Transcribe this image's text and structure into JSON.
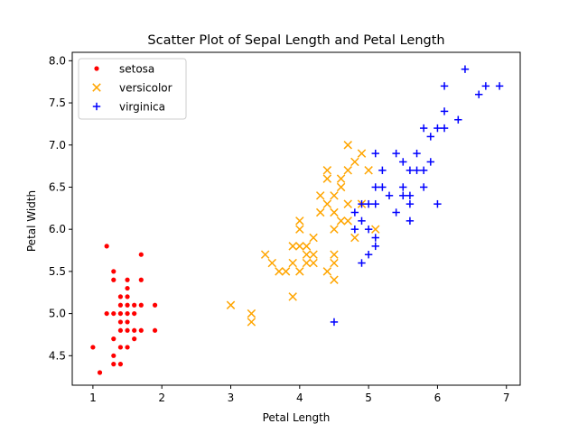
{
  "chart_data": {
    "type": "scatter",
    "title": "Scatter Plot of Sepal Length and Petal Length",
    "xlabel": "Petal Length",
    "ylabel": "Petal Width",
    "xlim": [
      0.7,
      7.2
    ],
    "ylim": [
      4.15,
      8.1
    ],
    "xticks": [
      1,
      2,
      3,
      4,
      5,
      6,
      7
    ],
    "yticks": [
      4.5,
      5.0,
      5.5,
      6.0,
      6.5,
      7.0,
      7.5,
      8.0
    ],
    "xtick_labels": [
      "1",
      "2",
      "3",
      "4",
      "5",
      "6",
      "7"
    ],
    "ytick_labels": [
      "4.5",
      "5.0",
      "5.5",
      "6.0",
      "6.5",
      "7.0",
      "7.5",
      "8.0"
    ],
    "grid": false,
    "legend_position": "top-left",
    "series": [
      {
        "name": "setosa",
        "marker": "dot",
        "color": "#ff0000",
        "points": [
          [
            1.0,
            4.6
          ],
          [
            1.1,
            4.3
          ],
          [
            1.2,
            5.8
          ],
          [
            1.2,
            5.0
          ],
          [
            1.3,
            5.5
          ],
          [
            1.3,
            5.4
          ],
          [
            1.3,
            5.0
          ],
          [
            1.3,
            4.7
          ],
          [
            1.3,
            4.5
          ],
          [
            1.3,
            4.4
          ],
          [
            1.4,
            5.2
          ],
          [
            1.4,
            5.1
          ],
          [
            1.4,
            5.0
          ],
          [
            1.4,
            4.9
          ],
          [
            1.4,
            4.8
          ],
          [
            1.4,
            4.6
          ],
          [
            1.4,
            4.4
          ],
          [
            1.5,
            5.4
          ],
          [
            1.5,
            5.3
          ],
          [
            1.5,
            5.2
          ],
          [
            1.5,
            5.1
          ],
          [
            1.5,
            5.0
          ],
          [
            1.5,
            4.9
          ],
          [
            1.5,
            4.8
          ],
          [
            1.5,
            4.6
          ],
          [
            1.6,
            5.1
          ],
          [
            1.6,
            5.0
          ],
          [
            1.6,
            4.8
          ],
          [
            1.6,
            4.7
          ],
          [
            1.7,
            5.7
          ],
          [
            1.7,
            5.4
          ],
          [
            1.7,
            5.1
          ],
          [
            1.7,
            4.8
          ],
          [
            1.9,
            5.1
          ],
          [
            1.9,
            4.8
          ]
        ]
      },
      {
        "name": "versicolor",
        "marker": "x",
        "color": "#ffa500",
        "points": [
          [
            3.0,
            5.1
          ],
          [
            3.3,
            5.0
          ],
          [
            3.3,
            4.9
          ],
          [
            3.5,
            5.7
          ],
          [
            3.6,
            5.6
          ],
          [
            3.7,
            5.5
          ],
          [
            3.8,
            5.5
          ],
          [
            3.9,
            5.8
          ],
          [
            3.9,
            5.6
          ],
          [
            3.9,
            5.2
          ],
          [
            4.0,
            6.1
          ],
          [
            4.0,
            6.0
          ],
          [
            4.0,
            5.8
          ],
          [
            4.0,
            5.5
          ],
          [
            4.1,
            5.8
          ],
          [
            4.1,
            5.7
          ],
          [
            4.1,
            5.6
          ],
          [
            4.2,
            5.9
          ],
          [
            4.2,
            5.7
          ],
          [
            4.2,
            5.6
          ],
          [
            4.3,
            6.4
          ],
          [
            4.3,
            6.2
          ],
          [
            4.4,
            6.7
          ],
          [
            4.4,
            6.6
          ],
          [
            4.4,
            6.3
          ],
          [
            4.4,
            5.5
          ],
          [
            4.5,
            6.4
          ],
          [
            4.5,
            6.2
          ],
          [
            4.5,
            6.0
          ],
          [
            4.5,
            5.7
          ],
          [
            4.5,
            5.6
          ],
          [
            4.5,
            5.4
          ],
          [
            4.6,
            6.6
          ],
          [
            4.6,
            6.5
          ],
          [
            4.6,
            6.1
          ],
          [
            4.7,
            7.0
          ],
          [
            4.7,
            6.7
          ],
          [
            4.7,
            6.3
          ],
          [
            4.7,
            6.1
          ],
          [
            4.8,
            6.8
          ],
          [
            4.8,
            5.9
          ],
          [
            4.9,
            6.9
          ],
          [
            4.9,
            6.3
          ],
          [
            5.0,
            6.7
          ],
          [
            5.1,
            6.0
          ]
        ]
      },
      {
        "name": "virginica",
        "marker": "plus",
        "color": "#0000ff",
        "points": [
          [
            4.5,
            4.9
          ],
          [
            4.8,
            6.2
          ],
          [
            4.8,
            6.0
          ],
          [
            4.9,
            6.3
          ],
          [
            4.9,
            6.1
          ],
          [
            4.9,
            5.6
          ],
          [
            5.0,
            6.3
          ],
          [
            5.0,
            6.0
          ],
          [
            5.0,
            5.7
          ],
          [
            5.1,
            6.9
          ],
          [
            5.1,
            6.5
          ],
          [
            5.1,
            6.3
          ],
          [
            5.1,
            5.9
          ],
          [
            5.1,
            5.8
          ],
          [
            5.2,
            6.7
          ],
          [
            5.2,
            6.5
          ],
          [
            5.3,
            6.4
          ],
          [
            5.4,
            6.9
          ],
          [
            5.4,
            6.2
          ],
          [
            5.5,
            6.8
          ],
          [
            5.5,
            6.5
          ],
          [
            5.5,
            6.4
          ],
          [
            5.6,
            6.7
          ],
          [
            5.6,
            6.4
          ],
          [
            5.6,
            6.3
          ],
          [
            5.6,
            6.1
          ],
          [
            5.7,
            6.9
          ],
          [
            5.7,
            6.7
          ],
          [
            5.8,
            7.2
          ],
          [
            5.8,
            6.7
          ],
          [
            5.8,
            6.5
          ],
          [
            5.9,
            7.1
          ],
          [
            5.9,
            6.8
          ],
          [
            6.0,
            7.2
          ],
          [
            6.0,
            6.3
          ],
          [
            6.1,
            7.7
          ],
          [
            6.1,
            7.4
          ],
          [
            6.1,
            7.2
          ],
          [
            6.3,
            7.3
          ],
          [
            6.4,
            7.9
          ],
          [
            6.6,
            7.6
          ],
          [
            6.7,
            7.7
          ],
          [
            6.9,
            7.7
          ]
        ]
      }
    ]
  }
}
